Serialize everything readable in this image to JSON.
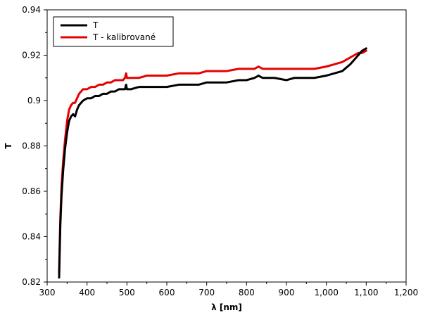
{
  "chart_data": {
    "type": "line",
    "title": "",
    "xlabel": "λ [nm]",
    "ylabel": "T",
    "xlim": [
      300,
      1200
    ],
    "ylim": [
      0.82,
      0.94
    ],
    "x_ticks": [
      300,
      400,
      500,
      600,
      700,
      800,
      900,
      1000,
      1100,
      1200
    ],
    "x_tick_labels": [
      "300",
      "400",
      "500",
      "600",
      "700",
      "800",
      "900",
      "1,000",
      "1,100",
      "1,200"
    ],
    "y_ticks": [
      0.82,
      0.84,
      0.86,
      0.88,
      0.9,
      0.92,
      0.94
    ],
    "y_tick_labels": [
      "0.82",
      "0.84",
      "0.86",
      "0.88",
      "0.9",
      "0.92",
      "0.94"
    ],
    "grid": false,
    "legend": "top-left",
    "series": [
      {
        "name": "T",
        "color": "#000000",
        "x": [
          330,
          331,
          333,
          336,
          340,
          345,
          350,
          355,
          360,
          365,
          370,
          375,
          380,
          385,
          390,
          400,
          410,
          420,
          430,
          440,
          450,
          460,
          470,
          480,
          490,
          495,
          498,
          500,
          505,
          510,
          530,
          550,
          570,
          600,
          630,
          650,
          680,
          700,
          720,
          750,
          780,
          800,
          820,
          830,
          840,
          850,
          870,
          900,
          920,
          950,
          970,
          1000,
          1020,
          1040,
          1060,
          1070,
          1080,
          1090,
          1100
        ],
        "y": [
          0.822,
          0.83,
          0.845,
          0.858,
          0.869,
          0.879,
          0.886,
          0.891,
          0.893,
          0.894,
          0.893,
          0.896,
          0.898,
          0.899,
          0.9,
          0.901,
          0.901,
          0.902,
          0.902,
          0.903,
          0.903,
          0.904,
          0.904,
          0.905,
          0.905,
          0.905,
          0.907,
          0.905,
          0.905,
          0.905,
          0.906,
          0.906,
          0.906,
          0.906,
          0.907,
          0.907,
          0.907,
          0.908,
          0.908,
          0.908,
          0.909,
          0.909,
          0.91,
          0.911,
          0.91,
          0.91,
          0.91,
          0.909,
          0.91,
          0.91,
          0.91,
          0.911,
          0.912,
          0.913,
          0.916,
          0.918,
          0.92,
          0.922,
          0.923
        ]
      },
      {
        "name": "T - kalibrované",
        "color": "#e60000",
        "x": [
          330,
          331,
          333,
          336,
          340,
          345,
          350,
          355,
          360,
          365,
          370,
          375,
          380,
          385,
          390,
          400,
          410,
          420,
          430,
          440,
          450,
          460,
          470,
          480,
          490,
          495,
          498,
          500,
          505,
          510,
          530,
          550,
          570,
          600,
          630,
          650,
          680,
          700,
          720,
          750,
          780,
          800,
          820,
          830,
          840,
          850,
          870,
          900,
          920,
          950,
          970,
          1000,
          1020,
          1040,
          1060,
          1070,
          1080,
          1090,
          1100
        ],
        "y": [
          0.824,
          0.833,
          0.848,
          0.862,
          0.873,
          0.883,
          0.891,
          0.896,
          0.898,
          0.899,
          0.899,
          0.901,
          0.903,
          0.904,
          0.905,
          0.905,
          0.906,
          0.906,
          0.907,
          0.907,
          0.908,
          0.908,
          0.909,
          0.909,
          0.909,
          0.91,
          0.912,
          0.91,
          0.91,
          0.91,
          0.91,
          0.911,
          0.911,
          0.911,
          0.912,
          0.912,
          0.912,
          0.913,
          0.913,
          0.913,
          0.914,
          0.914,
          0.914,
          0.915,
          0.914,
          0.914,
          0.914,
          0.914,
          0.914,
          0.914,
          0.914,
          0.915,
          0.916,
          0.917,
          0.919,
          0.92,
          0.921,
          0.921,
          0.922
        ]
      }
    ]
  }
}
